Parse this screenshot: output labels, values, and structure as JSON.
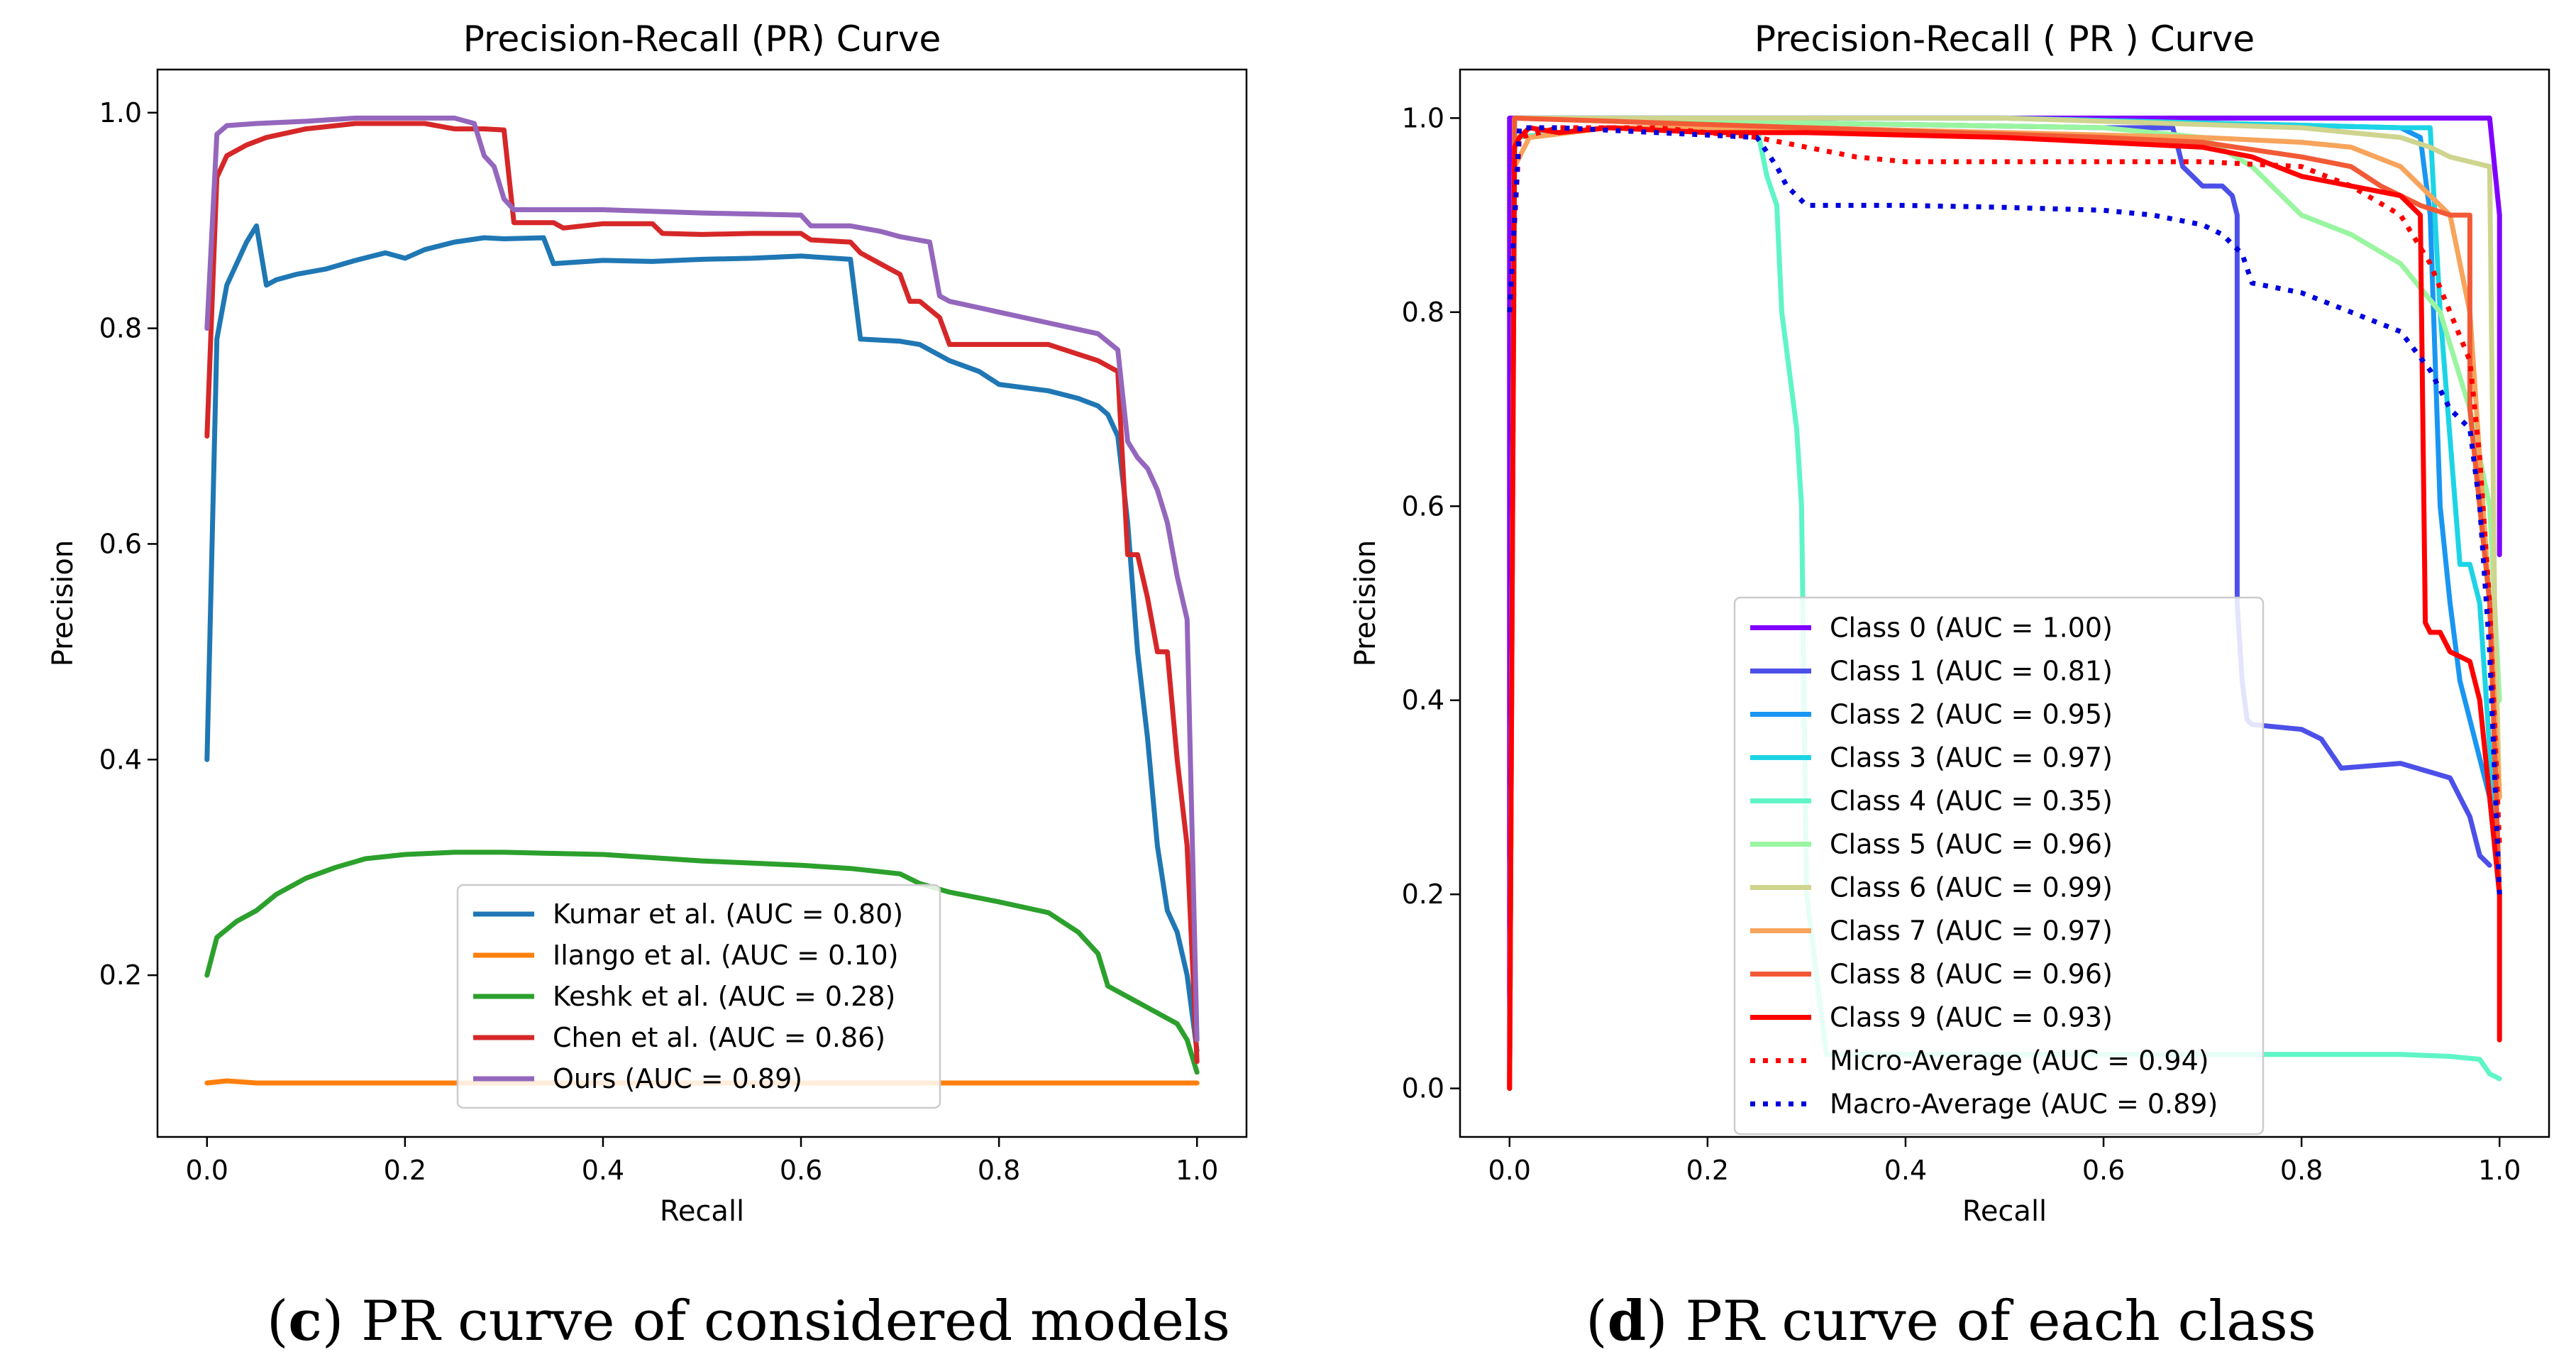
{
  "captions": {
    "left": {
      "prefix": "(",
      "letter": "c",
      "rest": ") PR curve of considered models"
    },
    "right": {
      "prefix": "(",
      "letter": "d",
      "rest": ") PR curve of each class"
    }
  },
  "chart_data": [
    {
      "type": "line",
      "title": "Precision-Recall (PR) Curve",
      "xlabel": "Recall",
      "ylabel": "Precision",
      "xlim": [
        -0.05,
        1.05
      ],
      "ylim": [
        0.05,
        1.04
      ],
      "xticks": [
        0.0,
        0.2,
        0.4,
        0.6,
        0.8,
        1.0
      ],
      "xtick_labels": [
        "0.0",
        "0.2",
        "0.4",
        "0.6",
        "0.8",
        "1.0"
      ],
      "yticks": [
        0.2,
        0.4,
        0.6,
        0.8,
        1.0
      ],
      "ytick_labels": [
        "0.2",
        "0.4",
        "0.6",
        "0.8",
        "1.0"
      ],
      "legend_position": "lower-right",
      "series": [
        {
          "name": "Kumar et al. (AUC = 0.80)",
          "color": "#1f77b4",
          "dash": "",
          "x": [
            0,
            0.01,
            0.02,
            0.04,
            0.05,
            0.06,
            0.07,
            0.09,
            0.12,
            0.15,
            0.18,
            0.2,
            0.22,
            0.25,
            0.28,
            0.3,
            0.34,
            0.35,
            0.4,
            0.45,
            0.5,
            0.55,
            0.6,
            0.65,
            0.66,
            0.7,
            0.72,
            0.75,
            0.78,
            0.8,
            0.85,
            0.88,
            0.9,
            0.91,
            0.92,
            0.93,
            0.94,
            0.95,
            0.96,
            0.97,
            0.98,
            0.99,
            1.0
          ],
          "y": [
            0.4,
            0.79,
            0.84,
            0.88,
            0.895,
            0.84,
            0.845,
            0.85,
            0.855,
            0.863,
            0.87,
            0.865,
            0.873,
            0.88,
            0.884,
            0.883,
            0.884,
            0.86,
            0.863,
            0.862,
            0.864,
            0.865,
            0.867,
            0.864,
            0.79,
            0.788,
            0.785,
            0.77,
            0.76,
            0.748,
            0.742,
            0.735,
            0.728,
            0.72,
            0.7,
            0.62,
            0.5,
            0.42,
            0.32,
            0.26,
            0.24,
            0.2,
            0.13
          ]
        },
        {
          "name": "Ilango et al. (AUC = 0.10)",
          "color": "#ff7f0e",
          "dash": "",
          "x": [
            0,
            0.02,
            0.05,
            0.1,
            0.3,
            0.5,
            0.7,
            0.9,
            1.0
          ],
          "y": [
            0.1,
            0.102,
            0.1,
            0.1,
            0.1,
            0.1,
            0.1,
            0.1,
            0.1
          ]
        },
        {
          "name": "Keshk et al. (AUC = 0.28)",
          "color": "#2ca02c",
          "dash": "",
          "x": [
            0,
            0.01,
            0.03,
            0.05,
            0.07,
            0.1,
            0.13,
            0.16,
            0.2,
            0.25,
            0.3,
            0.35,
            0.4,
            0.45,
            0.5,
            0.55,
            0.6,
            0.65,
            0.7,
            0.72,
            0.75,
            0.8,
            0.85,
            0.88,
            0.9,
            0.91,
            0.93,
            0.95,
            0.97,
            0.98,
            0.99,
            1.0
          ],
          "y": [
            0.2,
            0.235,
            0.25,
            0.26,
            0.275,
            0.29,
            0.3,
            0.308,
            0.312,
            0.314,
            0.314,
            0.313,
            0.312,
            0.309,
            0.306,
            0.304,
            0.302,
            0.299,
            0.294,
            0.285,
            0.277,
            0.268,
            0.258,
            0.24,
            0.22,
            0.19,
            0.18,
            0.17,
            0.16,
            0.155,
            0.14,
            0.11
          ]
        },
        {
          "name": "Chen et al. (AUC = 0.86)",
          "color": "#d62728",
          "dash": "",
          "x": [
            0,
            0.01,
            0.02,
            0.04,
            0.06,
            0.1,
            0.15,
            0.2,
            0.22,
            0.25,
            0.28,
            0.3,
            0.31,
            0.35,
            0.36,
            0.4,
            0.45,
            0.46,
            0.5,
            0.55,
            0.6,
            0.61,
            0.65,
            0.66,
            0.68,
            0.7,
            0.71,
            0.72,
            0.74,
            0.75,
            0.8,
            0.85,
            0.9,
            0.92,
            0.93,
            0.94,
            0.95,
            0.96,
            0.97,
            0.98,
            0.99,
            1.0
          ],
          "y": [
            0.7,
            0.94,
            0.96,
            0.97,
            0.977,
            0.985,
            0.99,
            0.99,
            0.99,
            0.985,
            0.985,
            0.984,
            0.898,
            0.898,
            0.893,
            0.897,
            0.897,
            0.888,
            0.887,
            0.888,
            0.888,
            0.882,
            0.88,
            0.87,
            0.86,
            0.85,
            0.825,
            0.825,
            0.81,
            0.785,
            0.785,
            0.785,
            0.77,
            0.76,
            0.59,
            0.59,
            0.55,
            0.5,
            0.5,
            0.4,
            0.32,
            0.12
          ]
        },
        {
          "name": "Ours (AUC = 0.89)",
          "color": "#9467bd",
          "dash": "",
          "x": [
            0,
            0.01,
            0.02,
            0.05,
            0.1,
            0.15,
            0.2,
            0.25,
            0.27,
            0.28,
            0.29,
            0.3,
            0.31,
            0.32,
            0.35,
            0.4,
            0.5,
            0.6,
            0.61,
            0.65,
            0.68,
            0.7,
            0.73,
            0.74,
            0.75,
            0.8,
            0.85,
            0.9,
            0.92,
            0.93,
            0.94,
            0.95,
            0.96,
            0.97,
            0.98,
            0.99,
            1.0
          ],
          "y": [
            0.8,
            0.98,
            0.988,
            0.99,
            0.992,
            0.995,
            0.995,
            0.995,
            0.99,
            0.96,
            0.95,
            0.92,
            0.91,
            0.91,
            0.91,
            0.91,
            0.907,
            0.905,
            0.895,
            0.895,
            0.89,
            0.885,
            0.88,
            0.83,
            0.825,
            0.815,
            0.805,
            0.795,
            0.78,
            0.695,
            0.68,
            0.67,
            0.65,
            0.62,
            0.57,
            0.53,
            0.14
          ]
        }
      ]
    },
    {
      "type": "line",
      "title": "Precision-Recall ( PR ) Curve",
      "xlabel": "Recall",
      "ylabel": "Precision",
      "xlim": [
        -0.05,
        1.05
      ],
      "ylim": [
        -0.05,
        1.05
      ],
      "xticks": [
        0.0,
        0.2,
        0.4,
        0.6,
        0.8,
        1.0
      ],
      "xtick_labels": [
        "0.0",
        "0.2",
        "0.4",
        "0.6",
        "0.8",
        "1.0"
      ],
      "yticks": [
        0.0,
        0.2,
        0.4,
        0.6,
        0.8,
        1.0
      ],
      "ytick_labels": [
        "0.0",
        "0.2",
        "0.4",
        "0.6",
        "0.8",
        "1.0"
      ],
      "legend_position": "lower-center",
      "series": [
        {
          "name": "Class 0 (AUC = 1.00)",
          "color": "#8000ff",
          "dash": "",
          "x": [
            0,
            0,
            0.99,
            1.0,
            1.0
          ],
          "y": [
            0,
            1.0,
            1.0,
            0.9,
            0.55
          ]
        },
        {
          "name": "Class 1 (AUC = 0.81)",
          "color": "#4c50e8",
          "dash": "",
          "x": [
            0,
            0.005,
            0.3,
            0.6,
            0.67,
            0.68,
            0.7,
            0.72,
            0.73,
            0.735,
            0.735,
            0.74,
            0.745,
            0.75,
            0.8,
            0.82,
            0.84,
            0.9,
            0.95,
            0.97,
            0.98,
            0.99
          ],
          "y": [
            0,
            1.0,
            0.995,
            0.99,
            0.99,
            0.95,
            0.93,
            0.93,
            0.92,
            0.9,
            0.5,
            0.42,
            0.38,
            0.375,
            0.37,
            0.36,
            0.33,
            0.335,
            0.32,
            0.28,
            0.24,
            0.23
          ]
        },
        {
          "name": "Class 2 (AUC = 0.95)",
          "color": "#1996f2",
          "dash": "",
          "x": [
            0,
            0.005,
            0.5,
            0.9,
            0.92,
            0.93,
            0.94,
            0.95,
            0.96,
            0.97,
            0.98,
            0.99,
            1.0
          ],
          "y": [
            0,
            1.0,
            1.0,
            0.99,
            0.98,
            0.9,
            0.6,
            0.5,
            0.42,
            0.38,
            0.34,
            0.3,
            0.2
          ]
        },
        {
          "name": "Class 3 (AUC = 0.97)",
          "color": "#1cd4e6",
          "dash": "",
          "x": [
            0,
            0.005,
            0.5,
            0.9,
            0.93,
            0.94,
            0.96,
            0.97,
            0.98,
            0.99,
            1.0
          ],
          "y": [
            0,
            1.0,
            1.0,
            0.99,
            0.99,
            0.8,
            0.54,
            0.54,
            0.5,
            0.35,
            0.2
          ]
        },
        {
          "name": "Class 4 (AUC = 0.35)",
          "color": "#5ff5c6",
          "dash": "",
          "x": [
            0,
            0.005,
            0.1,
            0.25,
            0.26,
            0.27,
            0.275,
            0.28,
            0.285,
            0.29,
            0.295,
            0.3,
            0.32,
            0.5,
            0.7,
            0.9,
            0.95,
            0.98,
            0.99,
            1.0
          ],
          "y": [
            0,
            0.98,
            0.99,
            0.99,
            0.94,
            0.91,
            0.8,
            0.76,
            0.72,
            0.68,
            0.6,
            0.2,
            0.035,
            0.035,
            0.035,
            0.035,
            0.033,
            0.03,
            0.015,
            0.01
          ]
        },
        {
          "name": "Class 5 (AUC = 0.96)",
          "color": "#99f5a0",
          "dash": "",
          "x": [
            0,
            0.005,
            0.3,
            0.6,
            0.7,
            0.75,
            0.78,
            0.8,
            0.85,
            0.9,
            0.94,
            0.97,
            0.99,
            1.0
          ],
          "y": [
            0,
            1.0,
            0.995,
            0.99,
            0.98,
            0.95,
            0.92,
            0.9,
            0.88,
            0.85,
            0.8,
            0.7,
            0.6,
            0.4
          ]
        },
        {
          "name": "Class 6 (AUC = 0.99)",
          "color": "#cfd48e",
          "dash": "",
          "x": [
            0,
            0.005,
            0.5,
            0.8,
            0.9,
            0.93,
            0.95,
            0.97,
            0.99,
            0.995,
            1.0
          ],
          "y": [
            0,
            1.0,
            1.0,
            0.99,
            0.98,
            0.97,
            0.96,
            0.955,
            0.95,
            0.5,
            0.3
          ]
        },
        {
          "name": "Class 7 (AUC = 0.97)",
          "color": "#f7a45c",
          "dash": "",
          "x": [
            0,
            0.005,
            0.02,
            0.1,
            0.3,
            0.5,
            0.7,
            0.8,
            0.85,
            0.9,
            0.93,
            0.95,
            0.97,
            0.98,
            0.99,
            1.0
          ],
          "y": [
            0,
            0.95,
            0.98,
            0.99,
            0.99,
            0.985,
            0.98,
            0.975,
            0.97,
            0.95,
            0.92,
            0.9,
            0.8,
            0.65,
            0.5,
            0.3
          ]
        },
        {
          "name": "Class 8 (AUC = 0.96)",
          "color": "#f25a36",
          "dash": "",
          "x": [
            0,
            0.005,
            0.3,
            0.6,
            0.7,
            0.8,
            0.85,
            0.88,
            0.9,
            0.92,
            0.95,
            0.96,
            0.97,
            0.97,
            0.98,
            0.99,
            1.0
          ],
          "y": [
            0,
            1.0,
            0.99,
            0.98,
            0.975,
            0.96,
            0.95,
            0.93,
            0.92,
            0.91,
            0.9,
            0.9,
            0.9,
            0.7,
            0.6,
            0.5,
            0.2
          ]
        },
        {
          "name": "Class 9 (AUC = 0.93)",
          "color": "#ff0000",
          "dash": "",
          "x": [
            0,
            0.005,
            0.01,
            0.02,
            0.05,
            0.1,
            0.2,
            0.3,
            0.5,
            0.6,
            0.7,
            0.75,
            0.8,
            0.85,
            0.9,
            0.91,
            0.92,
            0.925,
            0.93,
            0.94,
            0.95,
            0.97,
            0.98,
            0.99,
            1.0,
            1.0
          ],
          "y": [
            0,
            0.97,
            0.98,
            0.99,
            0.985,
            0.99,
            0.985,
            0.985,
            0.98,
            0.975,
            0.97,
            0.96,
            0.94,
            0.93,
            0.92,
            0.91,
            0.9,
            0.48,
            0.47,
            0.47,
            0.45,
            0.44,
            0.4,
            0.3,
            0.2,
            0.05
          ]
        },
        {
          "name": "Micro-Average (AUC = 0.94)",
          "color": "#ff0000",
          "dash": "dot",
          "x": [
            0,
            0.01,
            0.05,
            0.15,
            0.25,
            0.3,
            0.35,
            0.4,
            0.5,
            0.6,
            0.7,
            0.8,
            0.85,
            0.9,
            0.93,
            0.95,
            0.97,
            0.98,
            0.99,
            1.0
          ],
          "y": [
            0.8,
            0.98,
            0.99,
            0.99,
            0.98,
            0.97,
            0.96,
            0.955,
            0.955,
            0.955,
            0.955,
            0.95,
            0.93,
            0.9,
            0.85,
            0.8,
            0.75,
            0.65,
            0.5,
            0.25
          ]
        },
        {
          "name": "Macro-Average (AUC = 0.89)",
          "color": "#0000dd",
          "dash": "dot",
          "x": [
            0,
            0.01,
            0.05,
            0.15,
            0.25,
            0.27,
            0.28,
            0.29,
            0.3,
            0.4,
            0.5,
            0.6,
            0.65,
            0.7,
            0.72,
            0.73,
            0.74,
            0.75,
            0.8,
            0.85,
            0.9,
            0.93,
            0.95,
            0.97,
            0.98,
            0.99,
            1.0
          ],
          "y": [
            0.8,
            0.99,
            0.99,
            0.985,
            0.98,
            0.95,
            0.93,
            0.92,
            0.91,
            0.91,
            0.908,
            0.905,
            0.9,
            0.89,
            0.88,
            0.87,
            0.86,
            0.83,
            0.82,
            0.8,
            0.78,
            0.74,
            0.7,
            0.68,
            0.6,
            0.45,
            0.2
          ]
        }
      ]
    }
  ]
}
